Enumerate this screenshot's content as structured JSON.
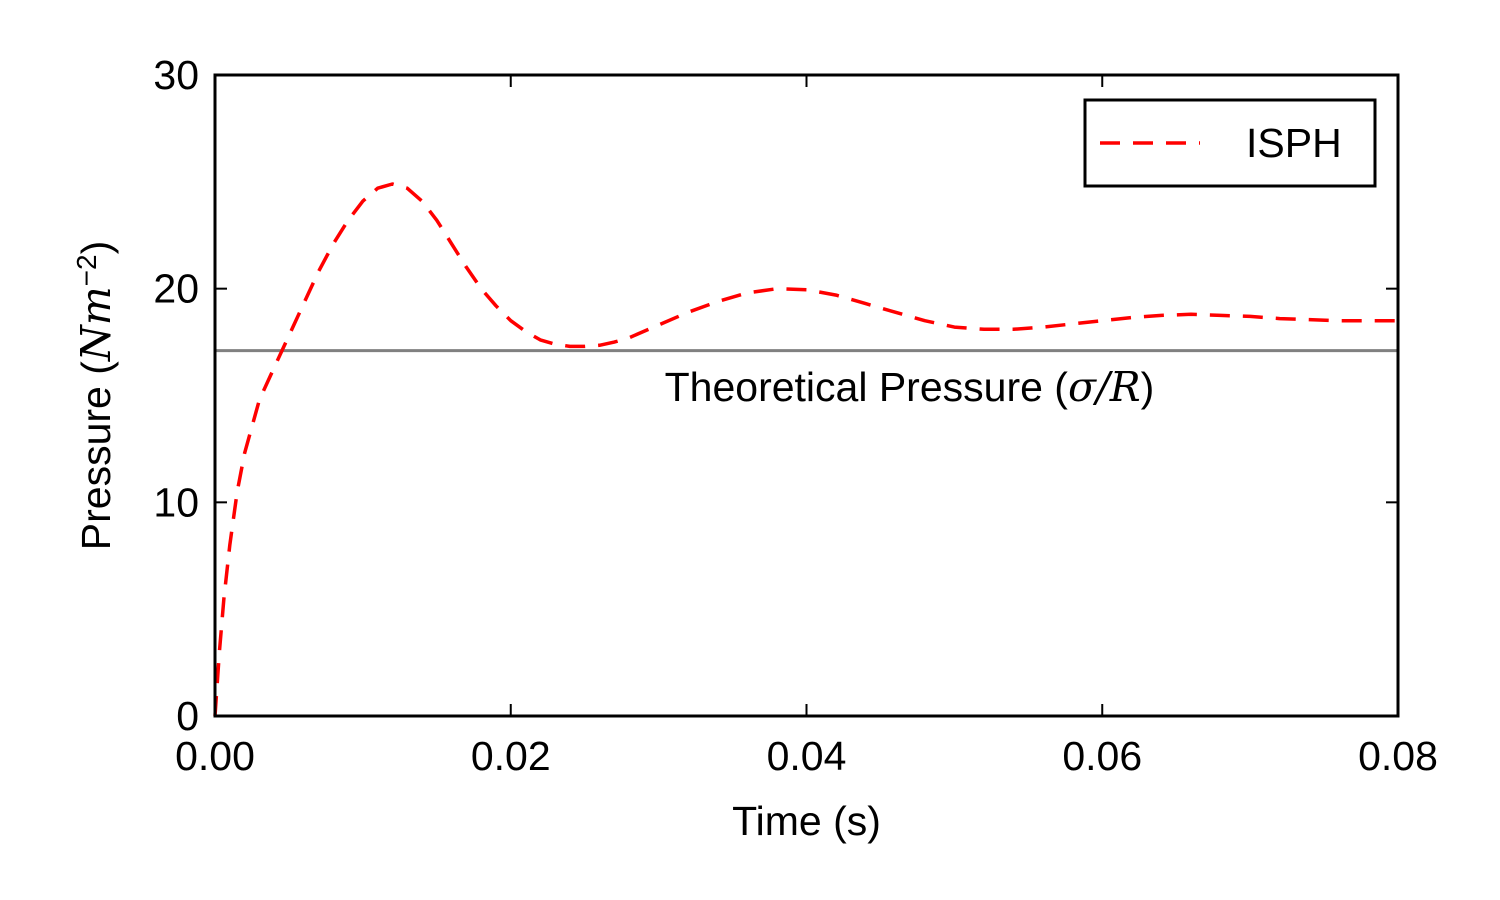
{
  "chart_data": {
    "type": "line",
    "title": "",
    "xlabel": "Time (s)",
    "ylabel": {
      "prefix": "Pressure (",
      "math": "Nm",
      "exponent": "−2",
      "suffix": ")"
    },
    "xlim": [
      0.0,
      0.08
    ],
    "ylim": [
      0,
      30
    ],
    "xticks": [
      0.0,
      0.02,
      0.04,
      0.06,
      0.08
    ],
    "xtick_labels": [
      "0.00",
      "0.02",
      "0.04",
      "0.06",
      "0.08"
    ],
    "yticks": [
      0,
      10,
      20,
      30
    ],
    "ytick_labels": [
      "0",
      "10",
      "20",
      "30"
    ],
    "grid": false,
    "legend_position": "top-right",
    "series": [
      {
        "name": "ISPH",
        "color": "#ff0000",
        "style": "dashed",
        "x": [
          0.0,
          0.0003,
          0.0006,
          0.001,
          0.0015,
          0.002,
          0.003,
          0.004,
          0.005,
          0.006,
          0.007,
          0.008,
          0.009,
          0.01,
          0.011,
          0.012,
          0.013,
          0.014,
          0.015,
          0.016,
          0.017,
          0.018,
          0.019,
          0.02,
          0.021,
          0.022,
          0.023,
          0.024,
          0.025,
          0.026,
          0.027,
          0.028,
          0.029,
          0.03,
          0.032,
          0.034,
          0.036,
          0.038,
          0.04,
          0.042,
          0.044,
          0.046,
          0.048,
          0.05,
          0.052,
          0.054,
          0.056,
          0.058,
          0.06,
          0.062,
          0.064,
          0.066,
          0.068,
          0.07,
          0.072,
          0.074,
          0.076,
          0.078,
          0.08
        ],
        "y": [
          0.0,
          3.0,
          5.5,
          8.0,
          10.5,
          12.3,
          14.8,
          16.3,
          17.8,
          19.3,
          20.8,
          22.1,
          23.2,
          24.1,
          24.7,
          24.9,
          24.7,
          24.1,
          23.2,
          22.1,
          21.0,
          20.0,
          19.2,
          18.5,
          18.0,
          17.6,
          17.4,
          17.3,
          17.3,
          17.35,
          17.5,
          17.7,
          18.0,
          18.3,
          18.9,
          19.4,
          19.8,
          20.0,
          19.95,
          19.7,
          19.3,
          18.9,
          18.5,
          18.2,
          18.1,
          18.1,
          18.2,
          18.35,
          18.5,
          18.65,
          18.75,
          18.8,
          18.75,
          18.7,
          18.6,
          18.55,
          18.5,
          18.5,
          18.5
        ]
      },
      {
        "name": "",
        "color": "#808080",
        "style": "solid",
        "x": [
          0.0,
          0.08
        ],
        "y": [
          17.1,
          17.1
        ]
      }
    ],
    "annotation": {
      "text_prefix": "Theoretical Pressure (",
      "math": "σ/R",
      "text_suffix": ")",
      "x": 0.03,
      "y": 15.4
    }
  }
}
